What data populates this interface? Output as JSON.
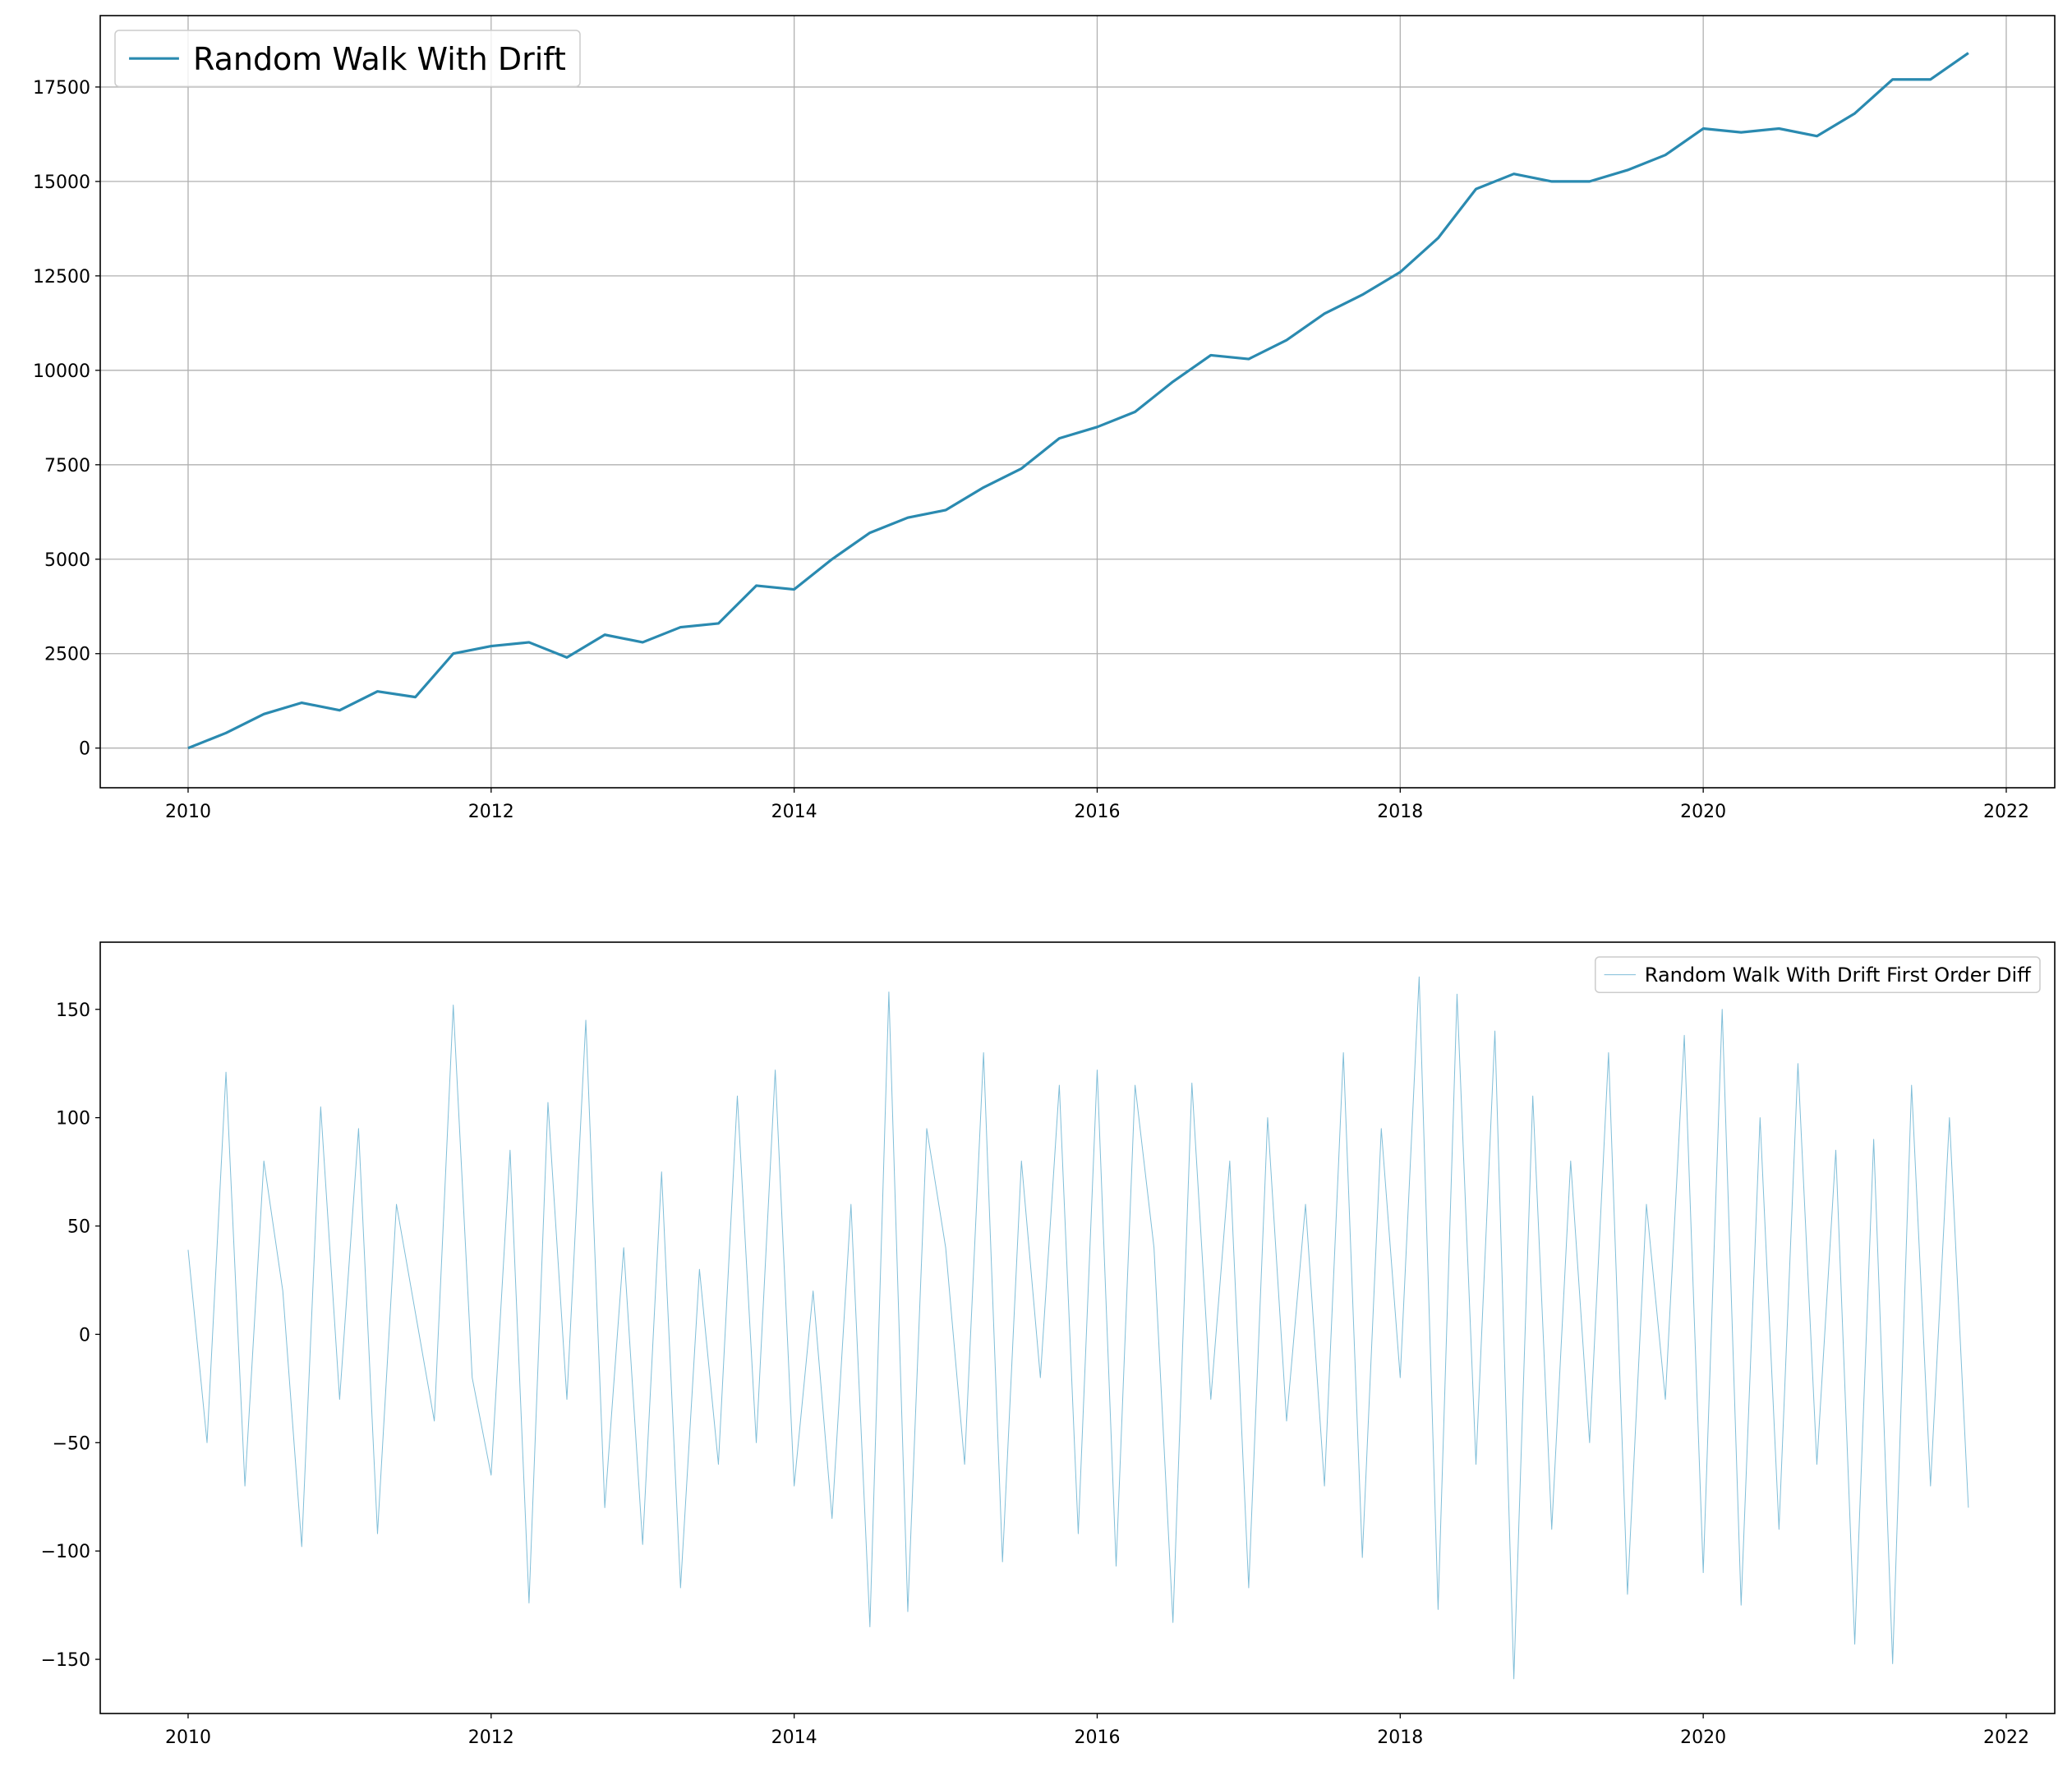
{
  "chart_data": [
    {
      "type": "line",
      "x": [
        2010,
        2010.25,
        2010.5,
        2010.75,
        2011,
        2011.25,
        2011.5,
        2011.75,
        2012,
        2012.25,
        2012.5,
        2012.75,
        2013,
        2013.25,
        2013.5,
        2013.75,
        2014,
        2014.25,
        2014.5,
        2014.75,
        2015,
        2015.25,
        2015.5,
        2015.75,
        2016,
        2016.25,
        2016.5,
        2016.75,
        2017,
        2017.25,
        2017.5,
        2017.75,
        2018,
        2018.25,
        2018.5,
        2018.75,
        2019,
        2019.25,
        2019.5,
        2019.75,
        2020,
        2020.25,
        2020.5,
        2020.75,
        2021,
        2021.25,
        2021.5,
        2021.75
      ],
      "series": [
        {
          "name": "Random Walk With Drift",
          "color": "#2a8ab0",
          "values": [
            0,
            400,
            900,
            1200,
            1000,
            1500,
            1350,
            2500,
            2700,
            2800,
            2400,
            3000,
            2800,
            3200,
            3300,
            4300,
            4200,
            5000,
            5700,
            6100,
            6300,
            6900,
            7400,
            8200,
            8500,
            8900,
            9700,
            10400,
            10300,
            10800,
            11500,
            12000,
            12600,
            13500,
            14800,
            15200,
            15000,
            15000,
            15300,
            15700,
            16400,
            16300,
            16400,
            16200,
            16800,
            17700,
            17700,
            18400
          ]
        }
      ],
      "xlim": [
        2009.42,
        2022.32
      ],
      "ylim": [
        -1050,
        19390
      ],
      "xticks": [
        2010,
        2012,
        2014,
        2016,
        2018,
        2020,
        2022
      ],
      "yticks": [
        0,
        2500,
        5000,
        7500,
        10000,
        12500,
        15000,
        17500
      ],
      "grid": true,
      "legend": "upper left"
    },
    {
      "type": "line",
      "x": [
        2010,
        2010.125,
        2010.25,
        2010.375,
        2010.5,
        2010.625,
        2010.75,
        2010.875,
        2011,
        2011.125,
        2011.25,
        2011.375,
        2011.5,
        2011.625,
        2011.75,
        2011.875,
        2012,
        2012.125,
        2012.25,
        2012.375,
        2012.5,
        2012.625,
        2012.75,
        2012.875,
        2013,
        2013.125,
        2013.25,
        2013.375,
        2013.5,
        2013.625,
        2013.75,
        2013.875,
        2014,
        2014.125,
        2014.25,
        2014.375,
        2014.5,
        2014.625,
        2014.75,
        2014.875,
        2015,
        2015.125,
        2015.25,
        2015.375,
        2015.5,
        2015.625,
        2015.75,
        2015.875,
        2016,
        2016.125,
        2016.25,
        2016.375,
        2016.5,
        2016.625,
        2016.75,
        2016.875,
        2017,
        2017.125,
        2017.25,
        2017.375,
        2017.5,
        2017.625,
        2017.75,
        2017.875,
        2018,
        2018.125,
        2018.25,
        2018.375,
        2018.5,
        2018.625,
        2018.75,
        2018.875,
        2019,
        2019.125,
        2019.25,
        2019.375,
        2019.5,
        2019.625,
        2019.75,
        2019.875,
        2020,
        2020.125,
        2020.25,
        2020.375,
        2020.5,
        2020.625,
        2020.75,
        2020.875,
        2021,
        2021.125,
        2021.25,
        2021.375,
        2021.5,
        2021.625,
        2021.75
      ],
      "series": [
        {
          "name": "Random Walk With Drift First Order Diff",
          "color": "#4aa3c7",
          "values": [
            39,
            -50,
            121,
            -70,
            80,
            20,
            -98,
            105,
            -30,
            95,
            -92,
            60,
            10,
            -40,
            152,
            -20,
            -65,
            85,
            -124,
            107,
            -30,
            145,
            -80,
            40,
            -97,
            75,
            -117,
            30,
            -60,
            110,
            -50,
            122,
            -70,
            20,
            -85,
            60,
            -135,
            158,
            -128,
            95,
            40,
            -60,
            130,
            -105,
            80,
            -20,
            115,
            -92,
            122,
            -107,
            115,
            40,
            -133,
            116,
            -30,
            80,
            -117,
            100,
            -40,
            60,
            -70,
            130,
            -103,
            95,
            -20,
            165,
            -127,
            157,
            -60,
            140,
            -159,
            110,
            -90,
            80,
            -50,
            130,
            -120,
            60,
            -30,
            138,
            -110,
            150,
            -125,
            100,
            -90,
            125,
            -60,
            85,
            -143,
            90,
            -152,
            115,
            -70,
            100,
            -80
          ]
        }
      ],
      "xlim": [
        2009.42,
        2022.32
      ],
      "ylim": [
        -175,
        181
      ],
      "xticks": [
        2010,
        2012,
        2014,
        2016,
        2018,
        2020,
        2022
      ],
      "yticks": [
        -150,
        -100,
        -50,
        0,
        50,
        100,
        150
      ],
      "grid": false,
      "legend": "upper right"
    }
  ]
}
